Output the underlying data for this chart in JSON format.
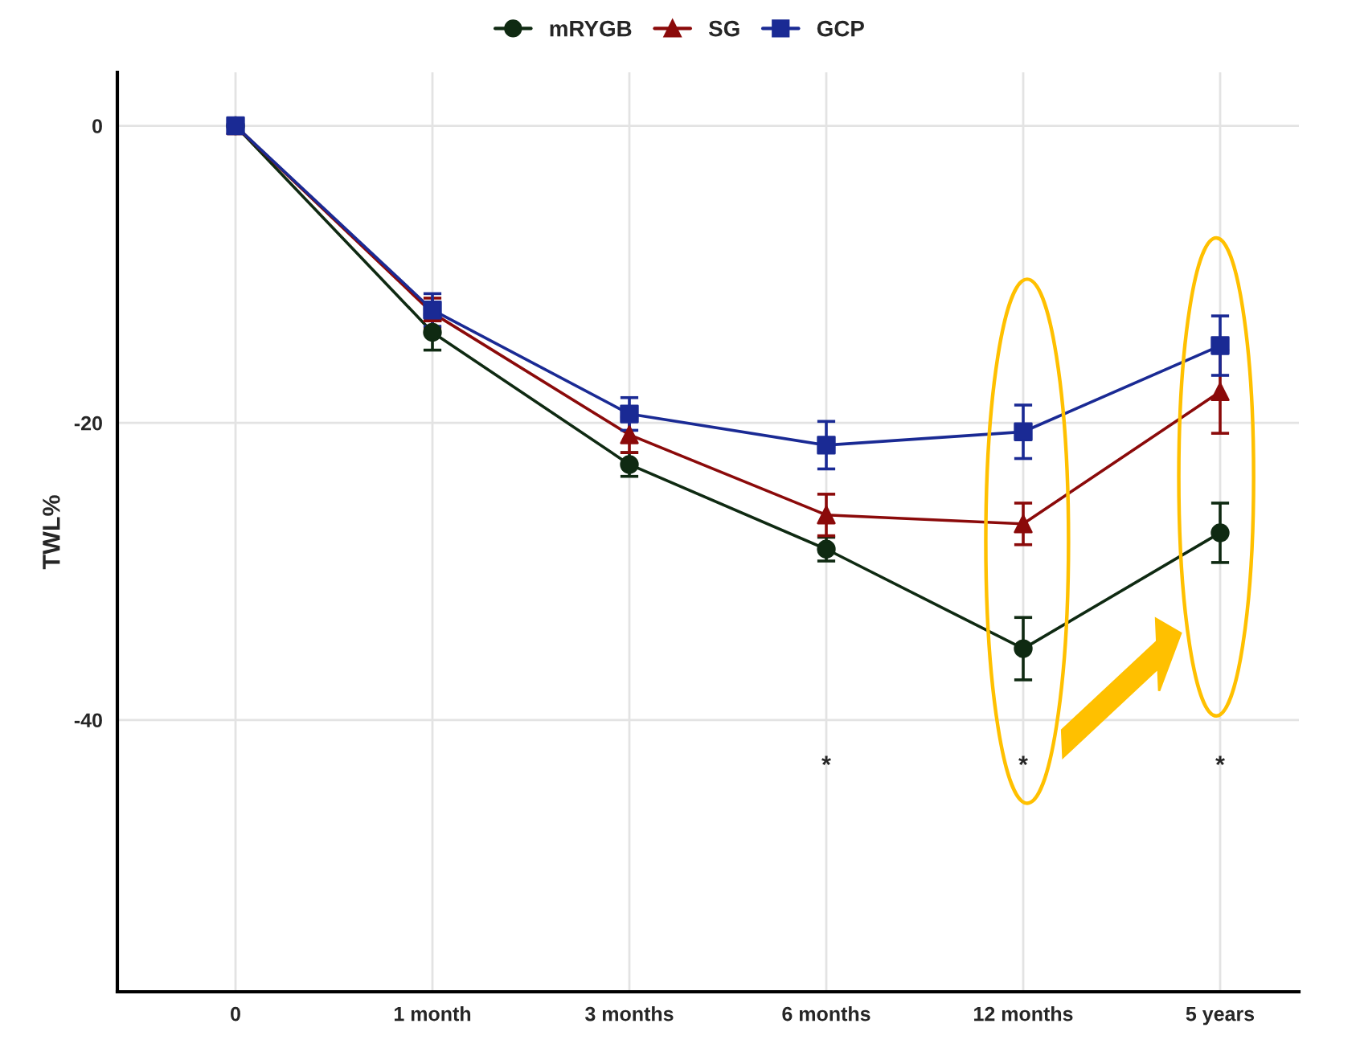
{
  "chart_data": {
    "type": "line",
    "ylabel": "TWL%",
    "categories": [
      "0",
      "1 month",
      "3 months",
      "6 months",
      "12 months",
      "5 years"
    ],
    "ylim": [
      -58.3,
      3.6
    ],
    "yticks": [
      0,
      -20,
      -40
    ],
    "series": [
      {
        "name": "mRYGB",
        "color": "#0f2a12",
        "marker": "circle",
        "values": [
          0,
          -13.9,
          -22.8,
          -28.5,
          -35.2,
          -27.4
        ],
        "errors": [
          null,
          1.2,
          0.8,
          0.8,
          2.1,
          2.0
        ]
      },
      {
        "name": "SG",
        "color": "#8b0a0a",
        "marker": "triangle",
        "values": [
          0,
          -12.6,
          -20.8,
          -26.2,
          -26.8,
          -17.9
        ],
        "errors": [
          null,
          1.0,
          1.2,
          1.4,
          1.4,
          2.8
        ]
      },
      {
        "name": "GCP",
        "color": "#1a2a94",
        "marker": "square",
        "values": [
          0,
          -12.4,
          -19.4,
          -21.5,
          -20.6,
          -14.8
        ],
        "errors": [
          null,
          1.1,
          1.1,
          1.6,
          1.8,
          2.0
        ]
      }
    ],
    "annotations": [
      "*",
      "*",
      "*"
    ],
    "grid": true,
    "legend": "top",
    "line_style": "solid"
  }
}
